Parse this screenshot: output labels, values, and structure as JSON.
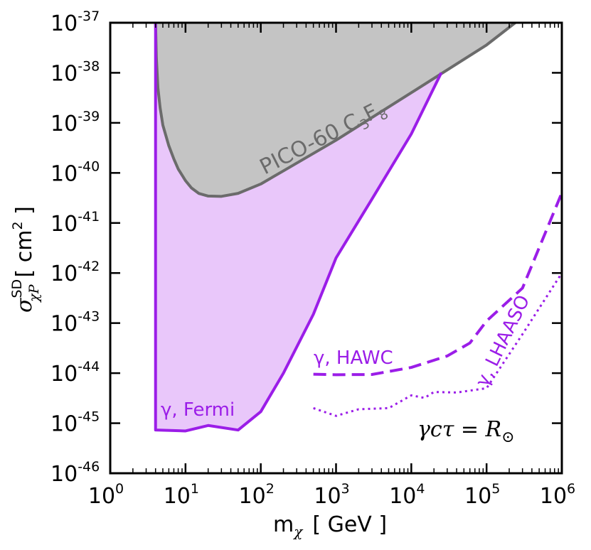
{
  "chart_data": {
    "type": "line",
    "xscale": "log",
    "yscale": "log",
    "xlim": [
      1,
      1000000
    ],
    "ylim": [
      1e-46,
      1e-37
    ],
    "x_ticks": [
      {
        "value": 1,
        "base": "10",
        "exp": "0"
      },
      {
        "value": 10,
        "base": "10",
        "exp": "1"
      },
      {
        "value": 100,
        "base": "10",
        "exp": "2"
      },
      {
        "value": 1000,
        "base": "10",
        "exp": "3"
      },
      {
        "value": 10000,
        "base": "10",
        "exp": "4"
      },
      {
        "value": 100000,
        "base": "10",
        "exp": "5"
      },
      {
        "value": 1000000,
        "base": "10",
        "exp": "6"
      }
    ],
    "y_ticks": [
      {
        "value": 1e-37,
        "base": "10",
        "exp": "-37"
      },
      {
        "value": 1e-38,
        "base": "10",
        "exp": "-38"
      },
      {
        "value": 1e-39,
        "base": "10",
        "exp": "-39"
      },
      {
        "value": 1e-40,
        "base": "10",
        "exp": "-40"
      },
      {
        "value": 1e-41,
        "base": "10",
        "exp": "-41"
      },
      {
        "value": 1e-42,
        "base": "10",
        "exp": "-42"
      },
      {
        "value": 1e-43,
        "base": "10",
        "exp": "-43"
      },
      {
        "value": 1e-44,
        "base": "10",
        "exp": "-44"
      },
      {
        "value": 1e-45,
        "base": "10",
        "exp": "-45"
      },
      {
        "value": 1e-46,
        "base": "10",
        "exp": "-46"
      }
    ],
    "xlabel": {
      "main": "m",
      "sub": "χ",
      "units": "[ GeV ]"
    },
    "ylabel": {
      "main": "σ",
      "sup": "SD",
      "sub": "χP",
      "units": "[ cm",
      "units_sup": "2",
      "units_end": " ]"
    },
    "series": [
      {
        "name": "PICO-60 C3F8",
        "label": "PICO-60 C",
        "label_sub1": "3",
        "label_mid": "F",
        "label_sub2": "8",
        "color": "#6b6b6b",
        "fill": "#c4c4c4",
        "style": "solid",
        "x": [
          4.0,
          4.1,
          4.3,
          4.6,
          5.0,
          6.0,
          7.0,
          8.0,
          10.0,
          12.0,
          15.0,
          20.0,
          30.0,
          50.0,
          100.0,
          200.0,
          1000.0,
          10000.0,
          100000.0,
          240000.0
        ],
        "y": [
          1e-37,
          2e-38,
          5e-39,
          2e-39,
          9e-40,
          3.5e-40,
          1.9e-40,
          1.2e-40,
          7e-41,
          5e-41,
          3.9e-41,
          3.45e-41,
          3.4e-41,
          3.9e-41,
          6e-41,
          1.1e-40,
          4.5e-40,
          4e-39,
          3.6e-38,
          1e-37
        ]
      },
      {
        "name": "γ, Fermi",
        "label": "γ, Fermi",
        "color": "#9b1de8",
        "fill": "#e9c7fa",
        "style": "solid",
        "x": [
          4.0,
          4.0,
          10.0,
          20.0,
          50.0,
          100.0,
          200.0,
          500.0,
          1000.0,
          3000.0,
          10000.0,
          25000.0
        ],
        "y": [
          1e-37,
          7.3e-46,
          7e-46,
          9e-46,
          7.3e-46,
          1.7e-45,
          1e-44,
          1.5e-43,
          2e-42,
          3e-41,
          6e-40,
          1e-38
        ]
      },
      {
        "name": "γ, HAWC",
        "label": "γ, HAWC",
        "color": "#9b1de8",
        "style": "dashed",
        "x": [
          500,
          1000,
          3000,
          10000,
          30000,
          60000,
          100000,
          300000,
          1000000
        ],
        "y": [
          9.5e-45,
          9.3e-45,
          9.4e-45,
          1.3e-44,
          2.2e-44,
          4e-44,
          1.1e-43,
          5e-43,
          4e-41
        ]
      },
      {
        "name": "γ, LHAASO",
        "label": "γ, LHAASO",
        "color": "#9b1de8",
        "style": "dotted",
        "x": [
          500,
          1000,
          2000,
          5000,
          10000,
          15000,
          20000,
          40000,
          100000,
          300000,
          1000000
        ],
        "y": [
          2e-45,
          1.4e-45,
          1.9e-45,
          2e-45,
          3.6e-45,
          3.2e-45,
          4.2e-45,
          4.1e-45,
          5e-45,
          6e-44,
          1e-42
        ]
      }
    ],
    "annotation": {
      "text1": "γcτ = R",
      "text2": "⊙"
    }
  }
}
